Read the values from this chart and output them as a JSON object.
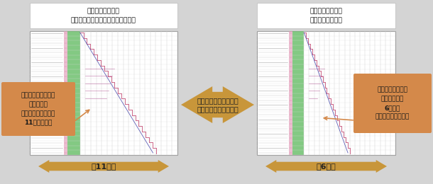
{
  "bg_color": "#d4d4d4",
  "title1_line1": "タスク：全タスク",
  "title1_line2": "リソース：各機能１名・設備各１台",
  "title2_line1": "タスク：全タスク",
  "title2_line2": "リソース：無制限",
  "label_left": "標準的なリソースで\n全タスクを\n実施しようとすると\n11カ月かかる",
  "label_center": "リソースの増減に伴う\n日程短縮効果がわかる",
  "label_right": "リソースに糸目を\n付けなければ\n6カ月で\n終えることができる",
  "arrow_left": "約11カ月",
  "arrow_right": "約6カ月",
  "box_color": "#d4894a",
  "box_text_color": "#1a1a1a",
  "center_arrow_color": "#c8963a",
  "bottom_arrow_color": "#c8963a",
  "chart_box_color": "#ffffff",
  "chart_border_color": "#999999",
  "gantt_green": "#5ab85a",
  "gantt_pink": "#cc6688",
  "gantt_blue": "#4444aa",
  "gantt_purple": "#8844aa",
  "title_box_color": "#ffffff",
  "title_text_color": "#111111",
  "left_box_text_color": "#111111",
  "right_box_text_color": "#111111"
}
